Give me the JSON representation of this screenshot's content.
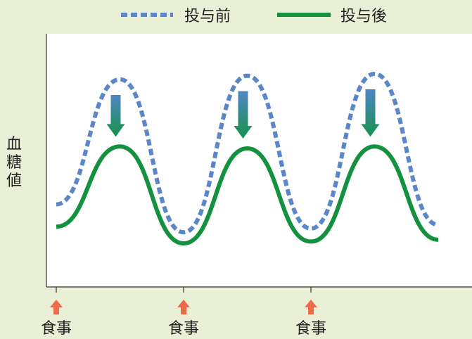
{
  "chart_data": {
    "type": "line",
    "ylabel": "血糖値",
    "legend": {
      "placement": "top-center"
    },
    "series": [
      {
        "name": "投与前",
        "style": "dashed",
        "color": "#5b86c8",
        "points": [
          [
            0,
            0.3
          ],
          [
            0.5,
            0.97
          ],
          [
            1,
            0.15
          ],
          [
            1.5,
            0.99
          ],
          [
            2,
            0.17
          ],
          [
            2.5,
            1.0
          ],
          [
            3,
            0.19
          ]
        ]
      },
      {
        "name": "投与後",
        "style": "solid",
        "color": "#13913f",
        "points": [
          [
            0,
            0.18
          ],
          [
            0.5,
            0.61
          ],
          [
            1,
            0.09
          ],
          [
            1.5,
            0.6
          ],
          [
            2,
            0.1
          ],
          [
            2.5,
            0.61
          ],
          [
            3,
            0.11
          ]
        ]
      }
    ],
    "meals": [
      {
        "x": 0,
        "label": "食事"
      },
      {
        "x": 1,
        "label": "食事"
      },
      {
        "x": 2,
        "label": "食事"
      }
    ],
    "reduction_arrows_at_x": [
      0.5,
      1.5,
      2.5
    ],
    "xlim": [
      0,
      3
    ],
    "grid": false
  }
}
